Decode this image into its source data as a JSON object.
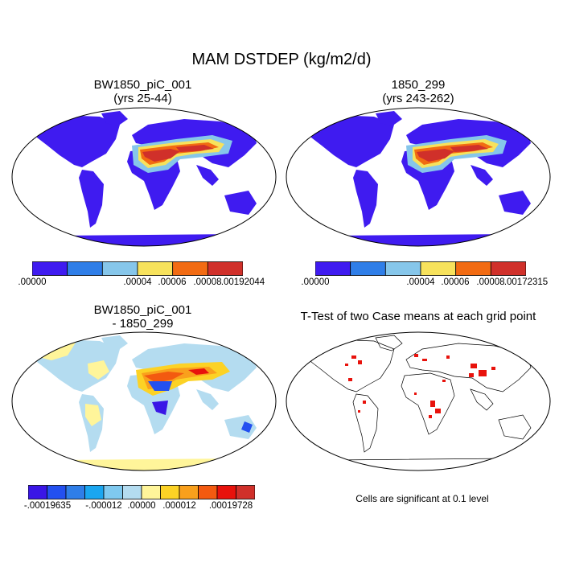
{
  "figure": {
    "title": "MAM DSTDEP (kg/m2/d)"
  },
  "panels": [
    {
      "title_line1": "BW1850_piC_001",
      "title_line2": "(yrs 25-44)",
      "colorbar": {
        "colors": [
          "#3f1bf0",
          "#2f7ee8",
          "#86c6ea",
          "#f7e25c",
          "#f26b12",
          "#d0302a"
        ],
        "labels": [
          ".00000",
          ".00004",
          ".00006",
          ".00008",
          ".00192044"
        ]
      }
    },
    {
      "title_line1": "1850_299",
      "title_line2": "(yrs 243-262)",
      "colorbar": {
        "colors": [
          "#3f1bf0",
          "#2f7ee8",
          "#86c6ea",
          "#f7e25c",
          "#f26b12",
          "#d0302a"
        ],
        "labels": [
          ".00000",
          ".00004",
          ".00006",
          ".00008",
          ".00172315"
        ]
      }
    },
    {
      "title_line1": "BW1850_piC_001",
      "title_line2": "- 1850_299",
      "colorbar": {
        "colors": [
          "#3a16e6",
          "#2350f0",
          "#2f7ee8",
          "#1aa6f0",
          "#7fc9ef",
          "#b4dcf0",
          "#fff59a",
          "#fcd225",
          "#f9a01c",
          "#f35a10",
          "#e8120c",
          "#d0302a"
        ],
        "labels": [
          "-.00019635",
          "-.000012",
          ".00000",
          ".000012",
          ".00019728"
        ]
      }
    },
    {
      "title_line1": "T-Test of two Case means at each grid point",
      "note": "Cells are significant at 0.1 level"
    }
  ]
}
